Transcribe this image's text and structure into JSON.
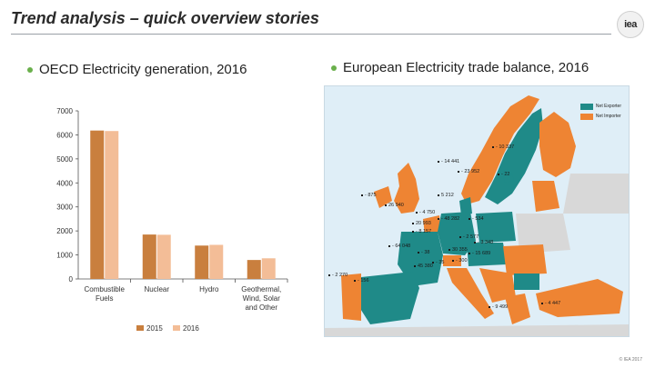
{
  "slide": {
    "title": "Trend analysis – quick overview stories",
    "logo_text": "iea",
    "copyright": "© IEA 2017"
  },
  "left_panel": {
    "heading": "OECD Electricity generation, 2016"
  },
  "right_panel": {
    "heading": "European Electricity trade balance, 2016"
  },
  "chart_data": {
    "type": "bar",
    "categories": [
      "Combustible Fuels",
      "Nuclear",
      "Hydro",
      "Geothermal, Wind, Solar and Other"
    ],
    "category_lines": [
      [
        "Combustible",
        "Fuels"
      ],
      [
        "Nuclear"
      ],
      [
        "Hydro"
      ],
      [
        "Geothermal,",
        "Wind, Solar",
        "and Other"
      ]
    ],
    "series": [
      {
        "name": "2015",
        "values": [
          6180,
          1850,
          1390,
          790
        ],
        "color": "#c97f3e"
      },
      {
        "name": "2016",
        "values": [
          6160,
          1840,
          1420,
          860
        ],
        "color": "#f3bd97"
      }
    ],
    "ylim": [
      0,
      7000
    ],
    "yticks": [
      0,
      1000,
      2000,
      3000,
      4000,
      5000,
      6000,
      7000
    ],
    "legend_position": "bottom",
    "grid": false
  },
  "map": {
    "legend": [
      {
        "label": "Net Exporter",
        "color": "#1f8a88"
      },
      {
        "label": "Net Importer",
        "color": "#ee8433"
      }
    ],
    "labels": [
      {
        "text": "- 10 337"
      },
      {
        "text": "- 14 441"
      },
      {
        "text": "- 23 952"
      },
      {
        "text": "- 22"
      },
      {
        "text": "- 875"
      },
      {
        "text": "5 212"
      },
      {
        "text": "26 940"
      },
      {
        "text": "- 4 750"
      },
      {
        "text": "- 48 282"
      },
      {
        "text": "- 534"
      },
      {
        "text": "20 993"
      },
      {
        "text": "- 8 157"
      },
      {
        "text": "- 2 577"
      },
      {
        "text": "- 3 348"
      },
      {
        "text": "- 64 048"
      },
      {
        "text": "- 38"
      },
      {
        "text": "- 35"
      },
      {
        "text": "30 355"
      },
      {
        "text": "- 15 689"
      },
      {
        "text": "- 300"
      },
      {
        "text": "45 380"
      },
      {
        "text": "- 2 270"
      },
      {
        "text": "- 156"
      },
      {
        "text": "- 9 499"
      },
      {
        "text": "- 4 447"
      }
    ]
  }
}
